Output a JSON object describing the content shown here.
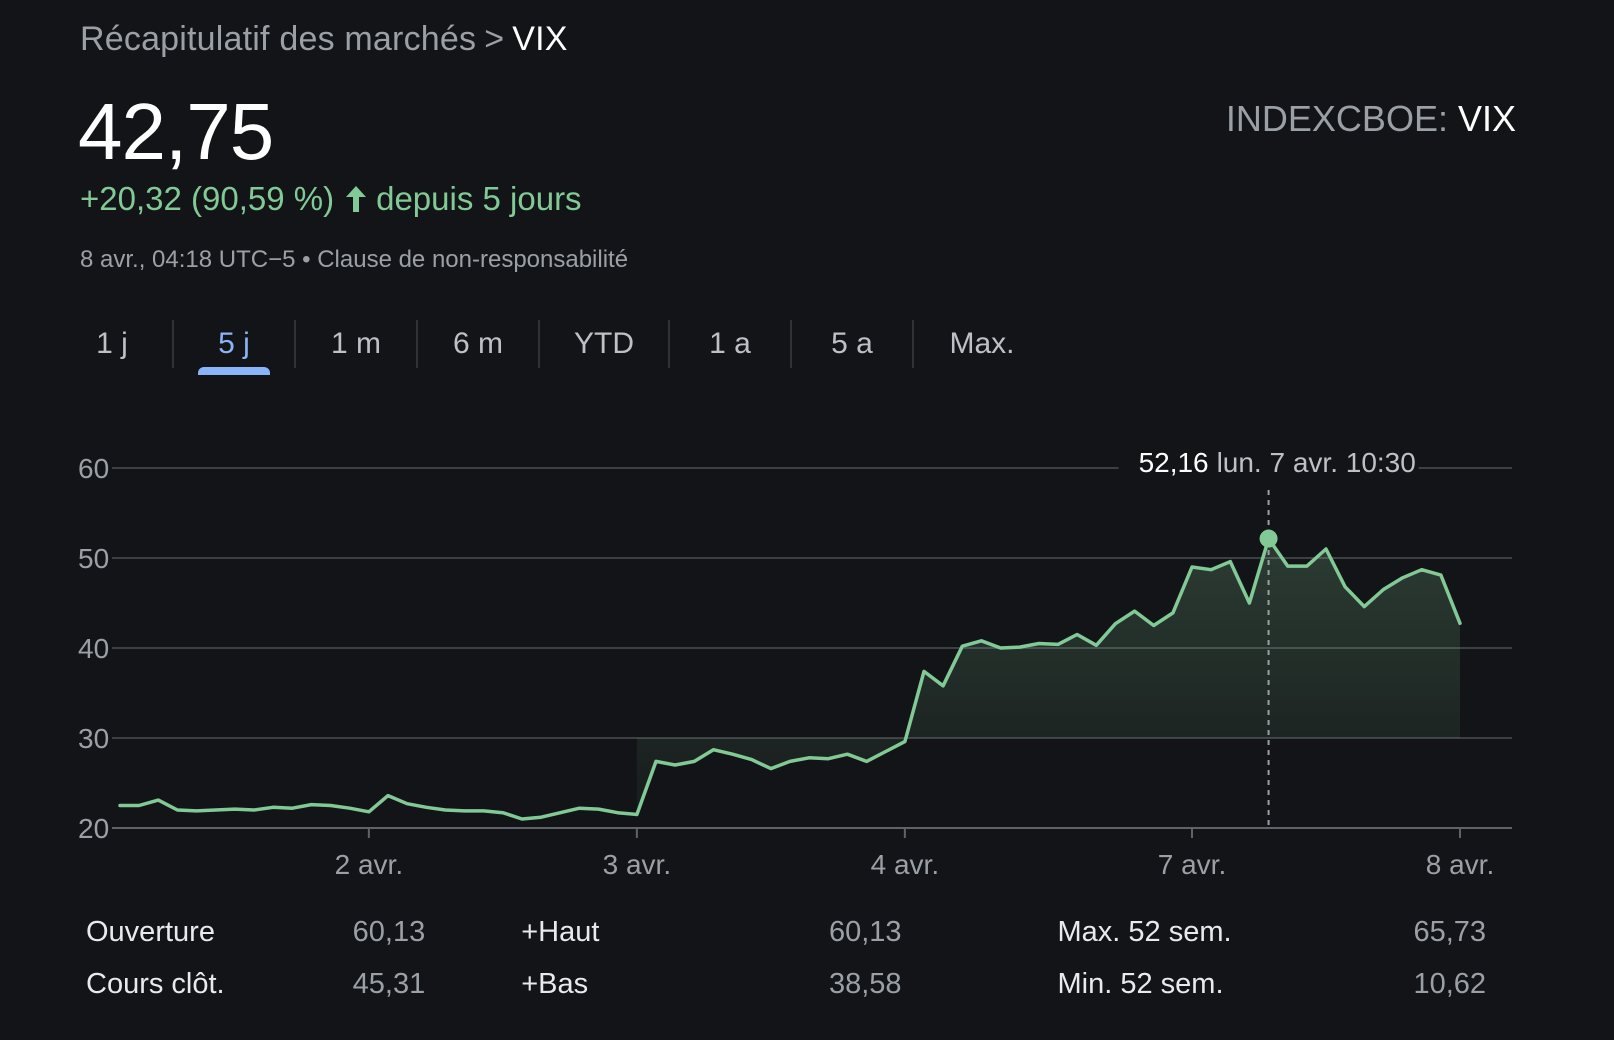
{
  "breadcrumb": {
    "parent": "Récapitulatif des marchés",
    "separator": ">",
    "current": "VIX"
  },
  "quote": {
    "price": "42,75",
    "change": "+20,32 (90,59 %)",
    "change_direction": "up",
    "change_period": "depuis 5 jours",
    "timestamp": "8 avr., 04:18 UTC−5",
    "bullet": "•",
    "disclaimer": "Clause de non-responsabilité"
  },
  "exchange": {
    "prefix": "INDEXCBOE:",
    "symbol": "VIX"
  },
  "tabs": [
    {
      "label": "1 j",
      "active": false
    },
    {
      "label": "5 j",
      "active": true
    },
    {
      "label": "1 m",
      "active": false
    },
    {
      "label": "6 m",
      "active": false
    },
    {
      "label": "YTD",
      "active": false
    },
    {
      "label": "1 a",
      "active": false
    },
    {
      "label": "5 a",
      "active": false
    },
    {
      "label": "Max.",
      "active": false
    }
  ],
  "colors": {
    "background": "#131417",
    "line": "#81c995",
    "accent": "#8ab4f8",
    "grid": "#3c4043"
  },
  "chart_data": {
    "type": "area",
    "y_ticks": [
      "60",
      "50",
      "40",
      "30",
      "20"
    ],
    "ylim": [
      20,
      60
    ],
    "x_labels": [
      "2 avr.",
      "3 avr.",
      "4 avr.",
      "7 avr.",
      "8 avr."
    ],
    "x_label_index": [
      13,
      27,
      41,
      56,
      70
    ],
    "values": [
      22.5,
      22.5,
      23.1,
      22.0,
      21.9,
      22.0,
      22.1,
      22.0,
      22.3,
      22.2,
      22.6,
      22.5,
      22.2,
      21.8,
      23.6,
      22.7,
      22.3,
      22.0,
      21.9,
      21.9,
      21.7,
      21.0,
      21.2,
      21.7,
      22.2,
      22.1,
      21.7,
      21.5,
      27.4,
      27.0,
      27.4,
      28.7,
      28.2,
      27.6,
      26.6,
      27.4,
      27.8,
      27.7,
      28.2,
      27.4,
      28.5,
      29.6,
      37.4,
      35.8,
      40.2,
      40.8,
      40.0,
      40.1,
      40.5,
      40.4,
      41.5,
      40.3,
      42.7,
      44.1,
      42.5,
      43.9,
      49.0,
      48.7,
      49.6,
      45.0,
      52.16,
      49.1,
      49.1,
      51.0,
      46.8,
      44.6,
      46.5,
      47.8,
      48.7,
      48.1,
      42.75
    ],
    "tooltip": {
      "value": "52,16",
      "label": "lun. 7 avr. 10:30",
      "index": 60
    },
    "grid": true
  },
  "stats": {
    "rows": [
      [
        {
          "label": "Ouverture",
          "value": "60,13"
        },
        {
          "label": "+Haut",
          "value": "60,13"
        },
        {
          "label": "Max. 52 sem.",
          "value": "65,73"
        }
      ],
      [
        {
          "label": "Cours clôt.",
          "value": "45,31"
        },
        {
          "label": "+Bas",
          "value": "38,58"
        },
        {
          "label": "Min. 52 sem.",
          "value": "10,62"
        }
      ]
    ]
  }
}
